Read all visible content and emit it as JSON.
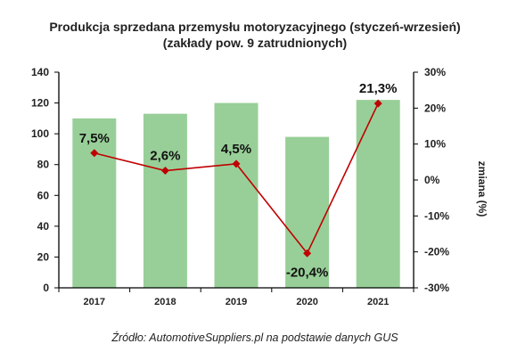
{
  "chart_data": {
    "type": "bar",
    "title": "Produkcja sprzedana przemysłu motoryzacyjnego (styczeń-wrzesień)",
    "subtitle": "(zakłady pow. 9 zatrudnionych)",
    "categories": [
      "2017",
      "2018",
      "2019",
      "2020",
      "2021"
    ],
    "series": [
      {
        "values": [
          110,
          113,
          120,
          98,
          122
        ]
      },
      {
        "name": "zmiana (%)",
        "values": [
          7.5,
          2.6,
          4.5,
          -20.4,
          21.3
        ]
      }
    ],
    "data_labels": [
      "7,5%",
      "2,6%",
      "4,5%",
      "-20,4%",
      "21,3%"
    ],
    "ylim": [
      0,
      140
    ],
    "y_ticks": [
      "0",
      "20",
      "40",
      "60",
      "80",
      "100",
      "120",
      "140"
    ],
    "y2_label": "zmiana (%)",
    "y2lim": [
      -30,
      30
    ],
    "y2_ticks": [
      "-30%",
      "-20%",
      "-10%",
      "0%",
      "10%",
      "20%",
      "30%"
    ],
    "source": "Źródło: AutomotiveSuppliers.pl na podstawie danych GUS",
    "colors": {
      "bar": "#98cf98",
      "line": "#c00000",
      "axis": "#000000"
    }
  }
}
